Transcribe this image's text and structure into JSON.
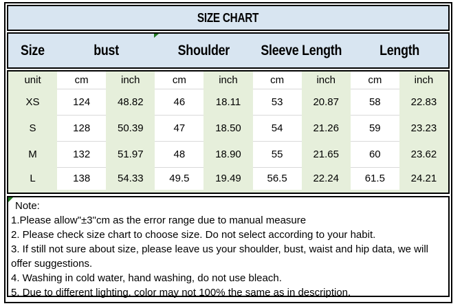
{
  "title": "SIZE CHART",
  "header": {
    "columns": [
      "Size",
      "bust",
      "Shoulder",
      "Sleeve Length",
      "Length"
    ]
  },
  "table": {
    "unit_row": [
      "unit",
      "cm",
      "inch",
      "cm",
      "inch",
      "cm",
      "inch",
      "cm",
      "inch"
    ],
    "rows": [
      [
        "XS",
        "124",
        "48.82",
        "46",
        "18.11",
        "53",
        "20.87",
        "58",
        "22.83"
      ],
      [
        "S",
        "128",
        "50.39",
        "47",
        "18.50",
        "54",
        "21.26",
        "59",
        "23.23"
      ],
      [
        "M",
        "132",
        "51.97",
        "48",
        "18.90",
        "55",
        "21.65",
        "60",
        "23.62"
      ],
      [
        "L",
        "138",
        "54.33",
        "49.5",
        "19.49",
        "56.5",
        "22.24",
        "61.5",
        "24.21"
      ]
    ]
  },
  "note": {
    "label": "Note:",
    "lines": [
      "1.Please allow\"±3\"cm as the error range due to manual measure",
      "2. Please check size chart to choose size. Do not select according to your habit.",
      "3. If still not sure about size, please leave us your shoulder, bust, waist and hip data, we will offer suggestions.",
      "4. Washing in cold water, hand washing, do not use bleach.",
      "5. Due to different lighting, color may not 100% the same as in description."
    ]
  },
  "colors": {
    "header_blue": "#d8e5f1",
    "cell_green": "#e6efdb",
    "marker_green": "#217a21",
    "border_black": "#000000"
  }
}
